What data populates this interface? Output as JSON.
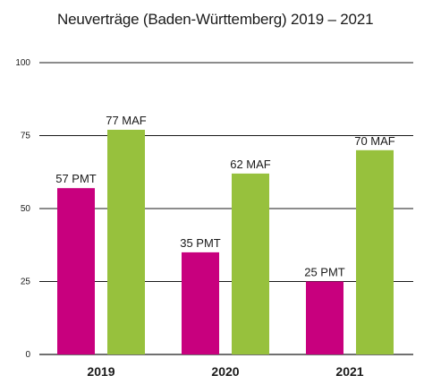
{
  "chart_data": {
    "type": "bar",
    "title": "Neuverträge (Baden-Württemberg) 2019 – 2021",
    "xlabel": "",
    "ylabel": "",
    "categories": [
      "2019",
      "2020",
      "2021"
    ],
    "ylim": [
      0,
      100
    ],
    "yticks": [
      0,
      25,
      50,
      75,
      100
    ],
    "grid": true,
    "legend": "none",
    "series": [
      {
        "color": "#c8007e",
        "values": [
          57,
          35,
          25
        ],
        "labels": [
          "57 PMT",
          "35 PMT",
          "25 PMT"
        ]
      },
      {
        "color": "#97c13d",
        "values": [
          77,
          62,
          70
        ],
        "labels": [
          "77 MAF",
          "62 MAF",
          "70 MAF"
        ]
      }
    ]
  }
}
